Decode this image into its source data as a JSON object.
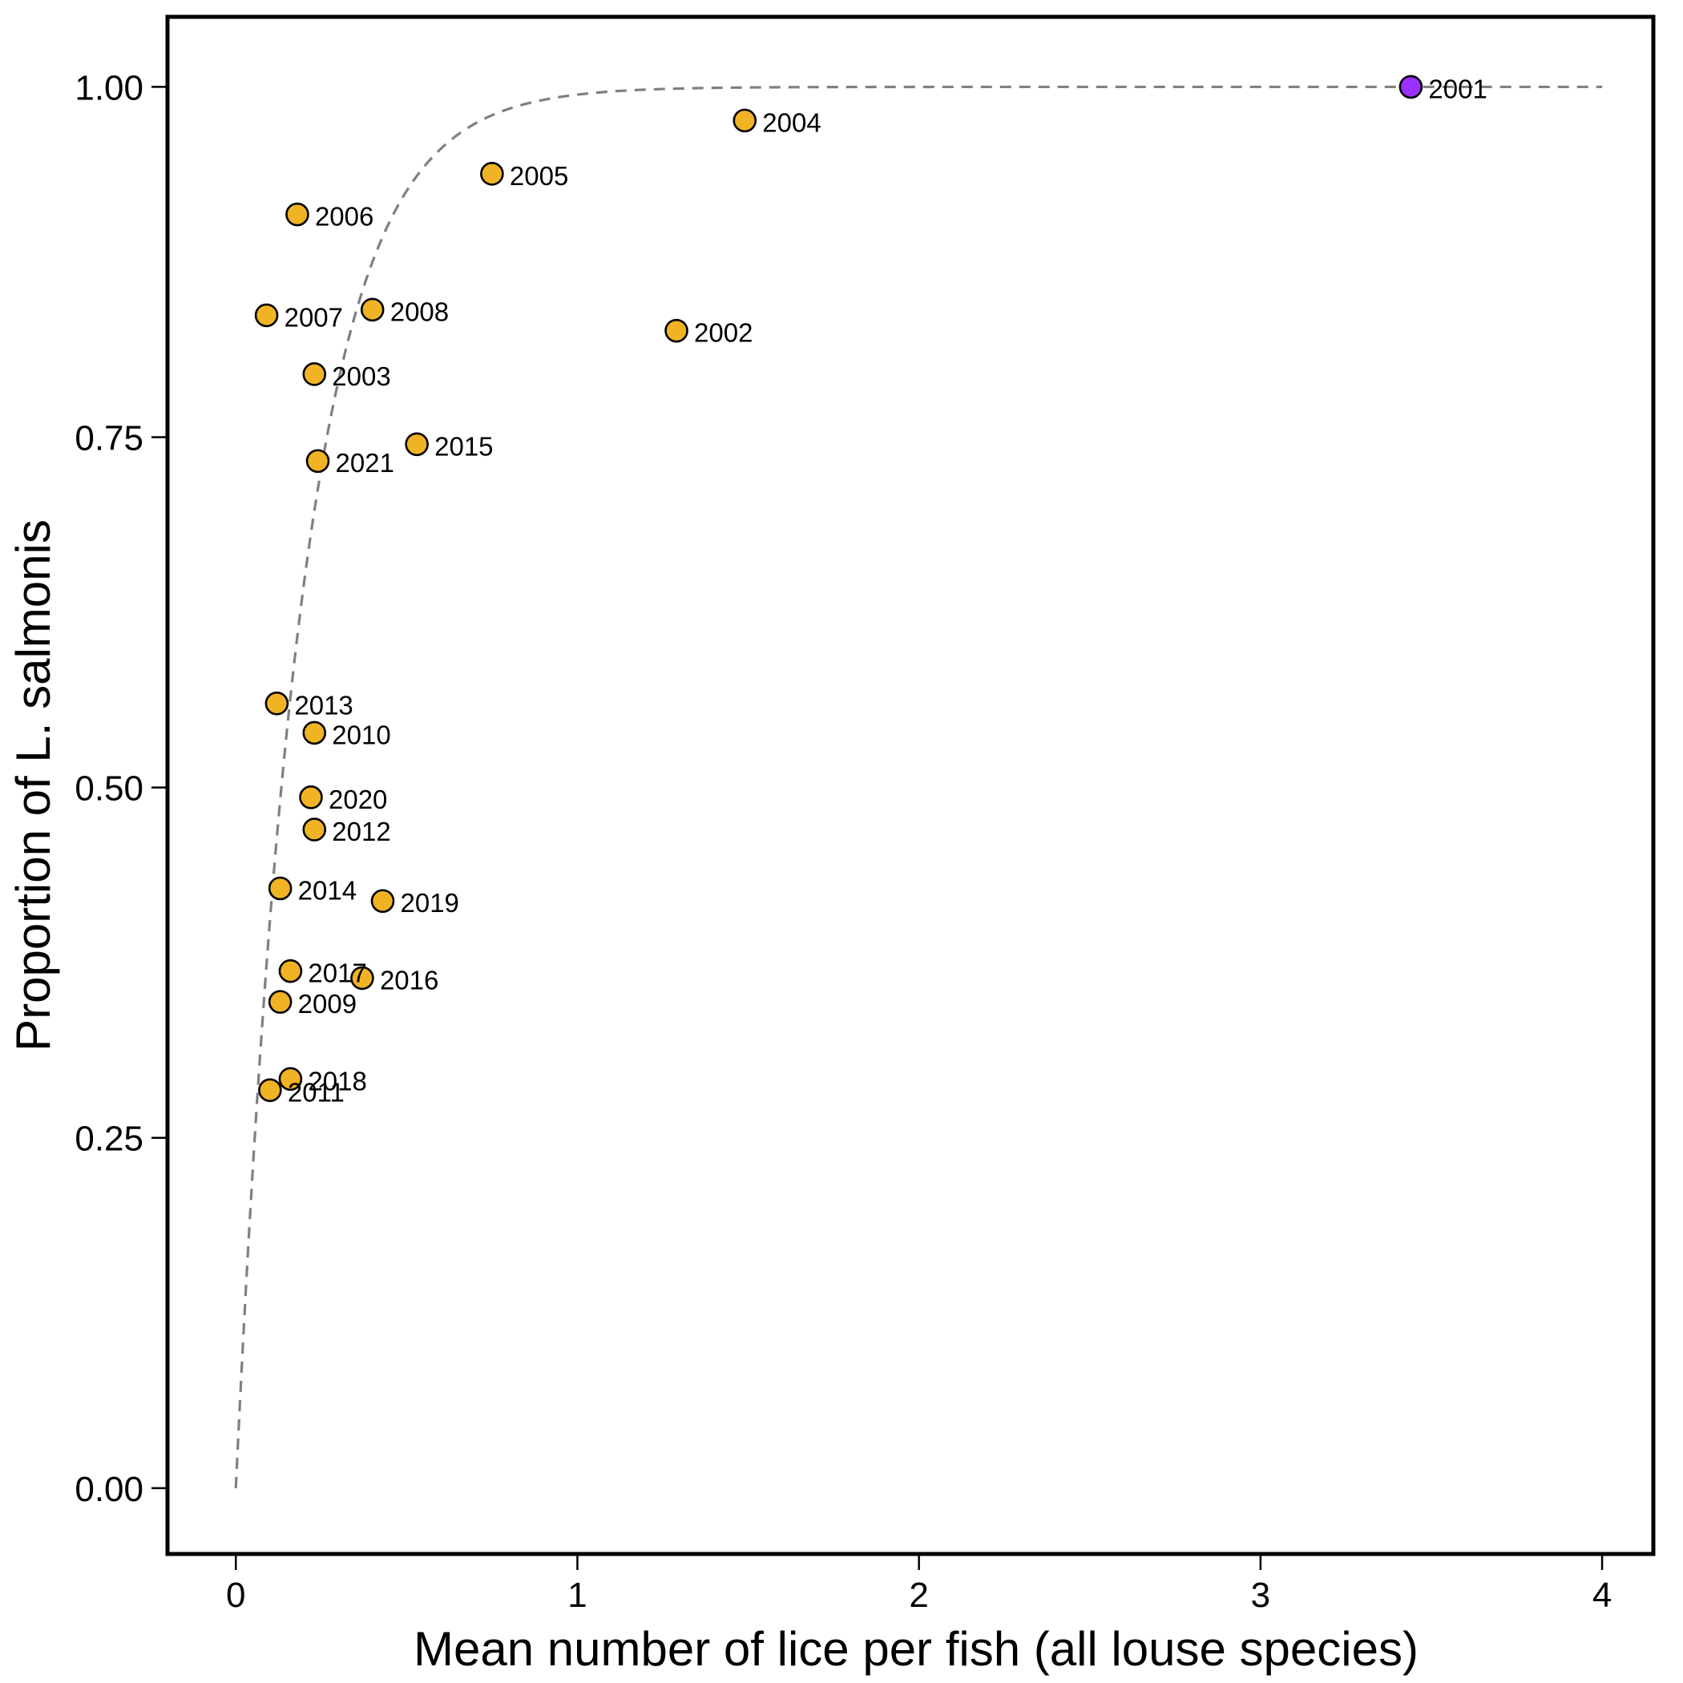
{
  "chart_data": {
    "type": "scatter",
    "xlabel": "Mean number of lice per fish (all louse species)",
    "ylabel": "Proportion of L. salmonis",
    "xlim": [
      -0.2,
      4.15
    ],
    "ylim": [
      -0.047,
      1.05
    ],
    "x_ticks": [
      0,
      1,
      2,
      3,
      4
    ],
    "x_tick_labels": [
      "0",
      "1",
      "2",
      "3",
      "4"
    ],
    "y_ticks": [
      0,
      0.25,
      0.5,
      0.75,
      1
    ],
    "y_tick_labels": [
      "0.00",
      "0.25",
      "0.50",
      "0.75",
      "1.00"
    ],
    "grid": false,
    "colors": {
      "default_point": "#F0B323",
      "highlight_point": "#9B30FF",
      "fit_line": "#808080"
    },
    "points": [
      {
        "label": "2001",
        "x": 3.44,
        "y": 1.0,
        "highlight": true
      },
      {
        "label": "2002",
        "x": 1.29,
        "y": 0.826
      },
      {
        "label": "2003",
        "x": 0.23,
        "y": 0.795
      },
      {
        "label": "2004",
        "x": 1.49,
        "y": 0.976
      },
      {
        "label": "2005",
        "x": 0.75,
        "y": 0.938
      },
      {
        "label": "2006",
        "x": 0.18,
        "y": 0.909
      },
      {
        "label": "2007",
        "x": 0.09,
        "y": 0.837
      },
      {
        "label": "2008",
        "x": 0.4,
        "y": 0.841
      },
      {
        "label": "2009",
        "x": 0.13,
        "y": 0.347
      },
      {
        "label": "2010",
        "x": 0.23,
        "y": 0.539
      },
      {
        "label": "2011",
        "x": 0.1,
        "y": 0.284
      },
      {
        "label": "2012",
        "x": 0.23,
        "y": 0.47
      },
      {
        "label": "2013",
        "x": 0.12,
        "y": 0.56
      },
      {
        "label": "2014",
        "x": 0.13,
        "y": 0.428
      },
      {
        "label": "2015",
        "x": 0.53,
        "y": 0.745
      },
      {
        "label": "2016",
        "x": 0.37,
        "y": 0.364
      },
      {
        "label": "2017",
        "x": 0.16,
        "y": 0.369
      },
      {
        "label": "2018",
        "x": 0.16,
        "y": 0.292
      },
      {
        "label": "2019",
        "x": 0.43,
        "y": 0.419
      },
      {
        "label": "2020",
        "x": 0.22,
        "y": 0.493
      },
      {
        "label": "2021",
        "x": 0.24,
        "y": 0.733
      }
    ],
    "fit_line": {
      "style": "dashed",
      "form": "1 - exp(-k*x)",
      "k": 5.2,
      "x_range": [
        0,
        4
      ]
    }
  }
}
